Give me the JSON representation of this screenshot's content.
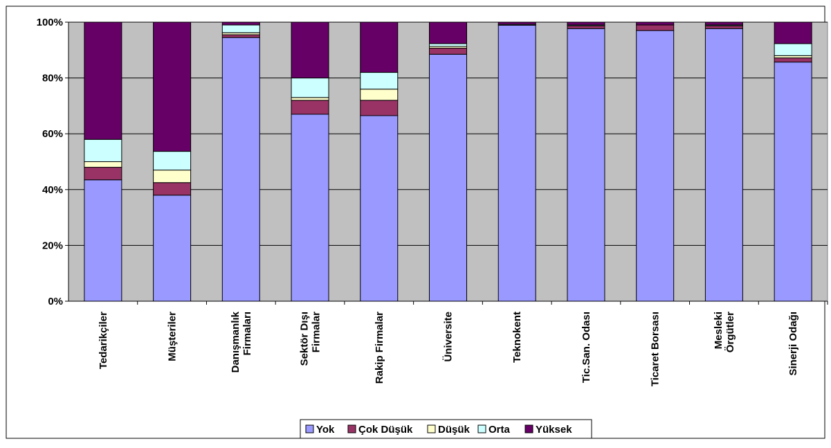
{
  "chart_data": {
    "type": "bar",
    "stacked": "percent",
    "title": "",
    "xlabel": "",
    "ylabel": "",
    "ylim": [
      0,
      100
    ],
    "yticks": [
      "0%",
      "20%",
      "40%",
      "60%",
      "80%",
      "100%"
    ],
    "grid": true,
    "legend_position": "bottom",
    "categories": [
      [
        "Tedarikçiler"
      ],
      [
        "Müşteriler"
      ],
      [
        "Danışmanlık",
        "Firmaları"
      ],
      [
        "Sektör Dışı",
        "Firmalar"
      ],
      [
        "Rakip Firmalar"
      ],
      [
        "Üniversite"
      ],
      [
        "Teknokent"
      ],
      [
        "Tic.San. Odası"
      ],
      [
        "Ticaret Borsası"
      ],
      [
        "Mesleki",
        "Örgütler"
      ],
      [
        "Sinerji Odağı"
      ]
    ],
    "series": [
      {
        "name": "Yok",
        "color": "#9999ff",
        "values": [
          43.5,
          38,
          94.5,
          67,
          66.5,
          88.5,
          98.9,
          97.7,
          97,
          97.7,
          85.7
        ]
      },
      {
        "name": "Çok Düşük",
        "color": "#993366",
        "values": [
          4.5,
          4.5,
          1,
          5,
          5.5,
          2.2,
          0,
          1,
          2,
          1,
          1.5
        ]
      },
      {
        "name": "Düşük",
        "color": "#ffffcc",
        "values": [
          2,
          4.5,
          0.7,
          1,
          4,
          0.6,
          0,
          0,
          0,
          0,
          0.8
        ]
      },
      {
        "name": "Orta",
        "color": "#ccffff",
        "values": [
          8,
          6.7,
          2.8,
          7,
          6,
          1,
          0.3,
          0.3,
          0,
          0.3,
          4.3
        ]
      },
      {
        "name": "Yüksek",
        "color": "#660066",
        "values": [
          42,
          46.3,
          1,
          20,
          18,
          7.7,
          0.8,
          1,
          1,
          1,
          7.7
        ]
      }
    ]
  }
}
